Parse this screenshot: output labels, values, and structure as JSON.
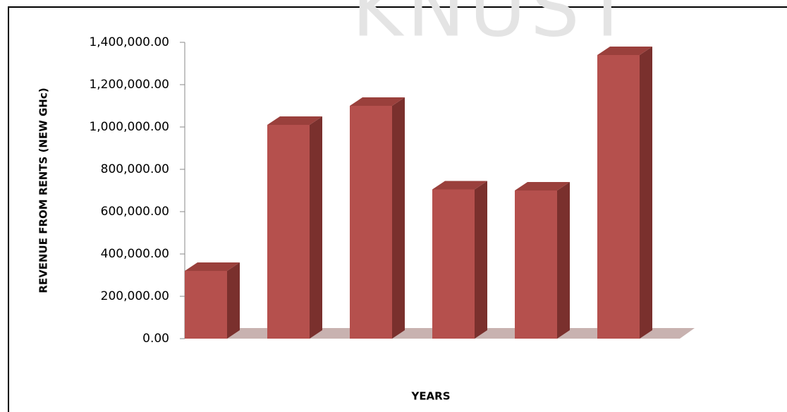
{
  "chart_data": {
    "type": "bar3d",
    "watermark": "KNUST",
    "y_label": "REVENUE FROM RENTS (NEW GHc)",
    "x_label": "YEARS",
    "categories": [
      null,
      null,
      null,
      null,
      null,
      null
    ],
    "values": [
      320000,
      1010000,
      1100000,
      705000,
      700000,
      1340000
    ],
    "color": "#b5504d",
    "ylim": [
      0,
      1400000
    ],
    "yticks": [
      {
        "value": 0,
        "label": "0.00"
      },
      {
        "value": 200000,
        "label": "200,000.00"
      },
      {
        "value": 400000,
        "label": "400,000.00"
      },
      {
        "value": 600000,
        "label": "600,000.00"
      },
      {
        "value": 800000,
        "label": "800,000.00"
      },
      {
        "value": 1000000,
        "label": "1,000,000.00"
      },
      {
        "value": 1200000,
        "label": "1,200,000.00"
      },
      {
        "value": 1400000,
        "label": "1,400,000.00"
      }
    ]
  }
}
